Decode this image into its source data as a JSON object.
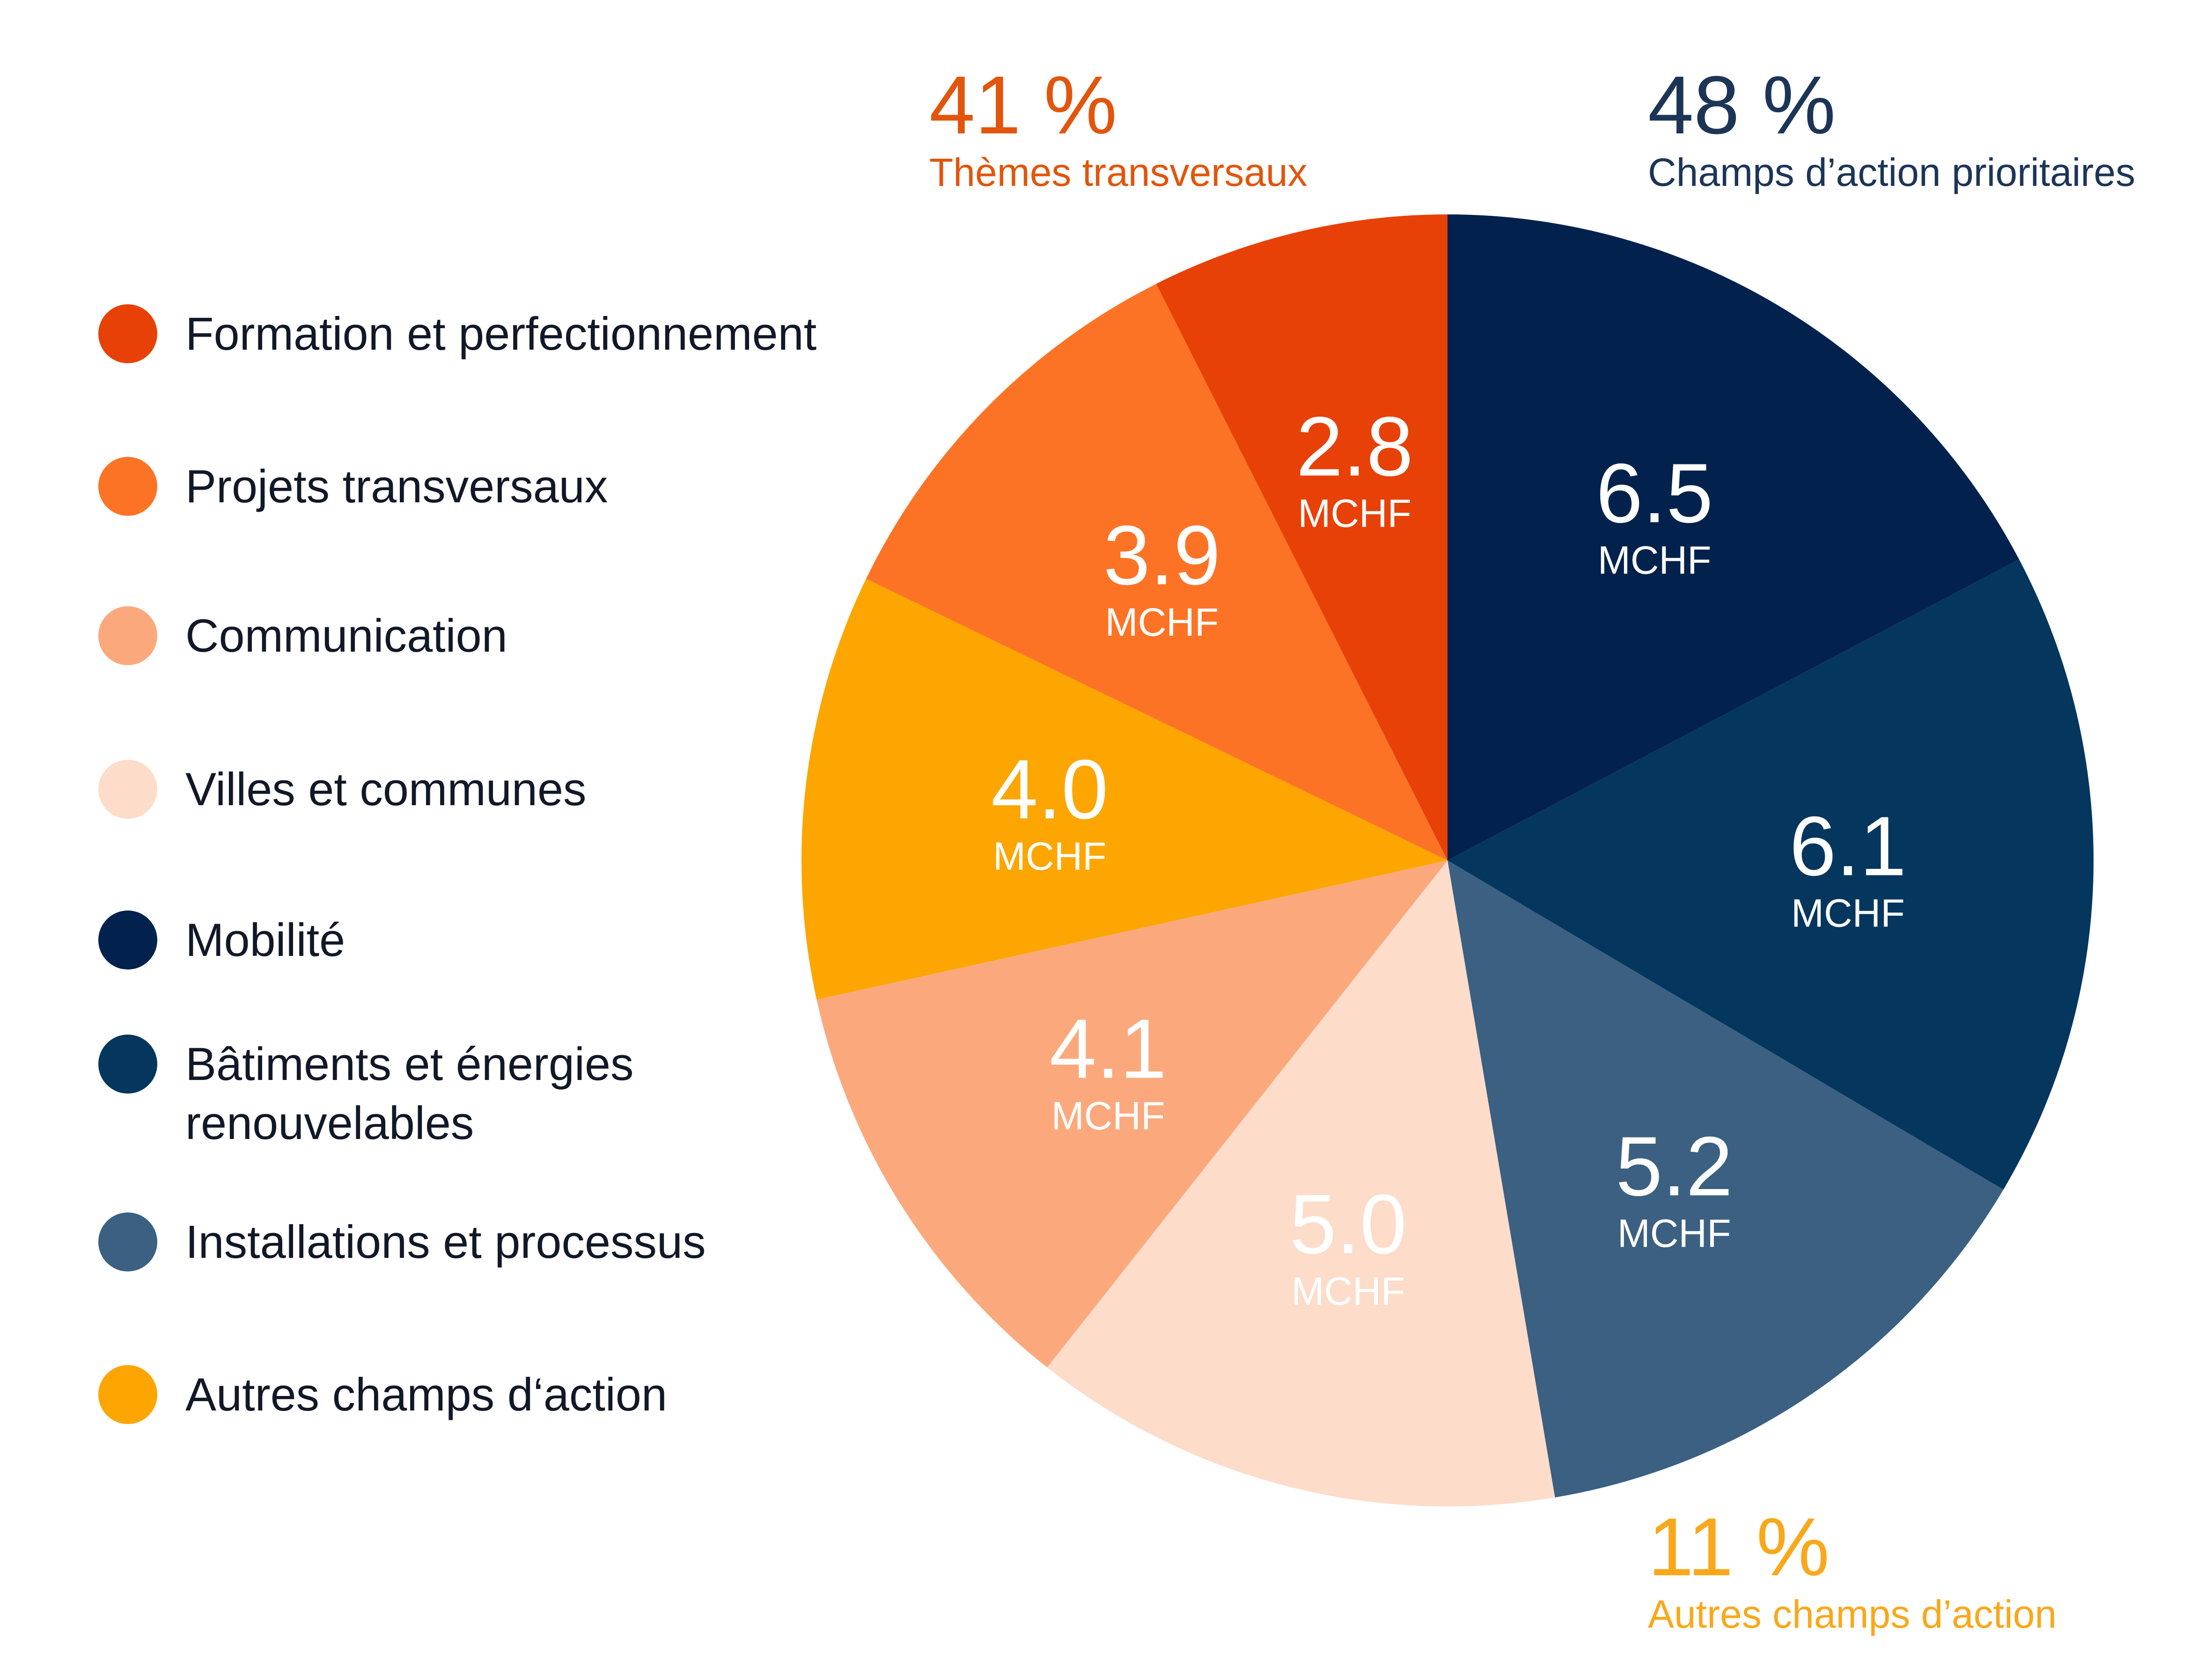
{
  "chart_data": {
    "type": "pie",
    "unit": "MCHF",
    "slices": [
      {
        "label": "Mobilité",
        "value": 6.5,
        "color": "#02224d"
      },
      {
        "label": "Bâtiments et énergies renouvelables",
        "value": 6.1,
        "color": "#04365e"
      },
      {
        "label": "Installations et processus",
        "value": 5.2,
        "color": "#3b6081"
      },
      {
        "label": "Villes et communes",
        "value": 5.0,
        "color": "#fddcca"
      },
      {
        "label": "Communication",
        "value": 4.1,
        "color": "#fba97c"
      },
      {
        "label": "Autres champs d‘action",
        "value": 4.0,
        "color": "#fda500"
      },
      {
        "label": "Projets transversaux",
        "value": 3.9,
        "color": "#fd7326"
      },
      {
        "label": "Formation et perfectionnement",
        "value": 2.8,
        "color": "#e84107"
      }
    ],
    "legend": [
      {
        "label": "Formation et perfectionnement",
        "color": "#e84107"
      },
      {
        "label": "Projets transversaux",
        "color": "#fd7326"
      },
      {
        "label": "Communication",
        "color": "#fba97c"
      },
      {
        "label": "Villes et communes",
        "color": "#fddcca"
      },
      {
        "label": "Mobilité",
        "color": "#02224d"
      },
      {
        "label": "Bâtiments et énergies renouvelables",
        "color": "#04365e"
      },
      {
        "label": "Installations et processus",
        "color": "#3b6081"
      },
      {
        "label": "Autres champs d‘action",
        "color": "#fda500"
      }
    ],
    "groups": [
      {
        "percent": "41 %",
        "name": "Thèmes transversaux",
        "color": "#e2550c"
      },
      {
        "percent": "48 %",
        "name": "Champs d’action prioritaires",
        "color": "#1c3557"
      },
      {
        "percent": "11 %",
        "name": "Autres champs d’action",
        "color": "#f9a81b"
      }
    ],
    "legend_position": "left"
  }
}
